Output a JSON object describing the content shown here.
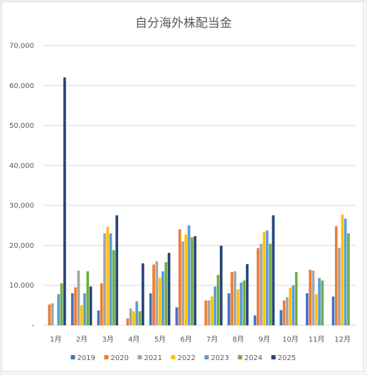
{
  "chart_data": {
    "type": "bar",
    "title": "自分海外株配当金",
    "xlabel": "",
    "ylabel": "",
    "categories": [
      "1月",
      "2月",
      "3月",
      "4月",
      "5月",
      "6月",
      "7月",
      "8月",
      "9月",
      "10月",
      "11月",
      "12月"
    ],
    "ylim": [
      0,
      70000
    ],
    "yticks": [
      0,
      10000,
      20000,
      30000,
      40000,
      50000,
      60000,
      70000
    ],
    "ytick_labels": [
      "-",
      "10,000",
      "20,000",
      "30,000",
      "40,000",
      "50,000",
      "60,000",
      "70,000"
    ],
    "grid": true,
    "legend_position": "bottom",
    "series": [
      {
        "name": "2019",
        "color": "#4472c4",
        "values": [
          0,
          8000,
          3700,
          0,
          8000,
          4500,
          0,
          8000,
          2500,
          3800,
          8000,
          7200
        ]
      },
      {
        "name": "2020",
        "color": "#ed7d31",
        "values": [
          5200,
          9500,
          10500,
          1700,
          15200,
          24000,
          6200,
          13300,
          19300,
          6200,
          13900,
          24800
        ]
      },
      {
        "name": "2021",
        "color": "#a5a5a5",
        "values": [
          5500,
          13700,
          23000,
          4200,
          16000,
          21000,
          6200,
          13500,
          20400,
          7000,
          13700,
          19400
        ]
      },
      {
        "name": "2022",
        "color": "#ffc000",
        "values": [
          0,
          5000,
          24600,
          3500,
          11900,
          22700,
          7200,
          9000,
          23300,
          9400,
          7800,
          27700
        ]
      },
      {
        "name": "2023",
        "color": "#5b9bd5",
        "values": [
          7800,
          8000,
          23000,
          6000,
          13500,
          25000,
          9700,
          10700,
          23700,
          10000,
          11800,
          26700
        ]
      },
      {
        "name": "2024",
        "color": "#70ad47",
        "values": [
          10500,
          13500,
          18800,
          3500,
          15800,
          22000,
          12600,
          11200,
          20400,
          13300,
          11200,
          23000
        ]
      },
      {
        "name": "2025",
        "color": "#264478",
        "values": [
          62000,
          9700,
          27500,
          15500,
          18100,
          22300,
          19900,
          15300,
          27500,
          0,
          0,
          0
        ]
      }
    ]
  }
}
